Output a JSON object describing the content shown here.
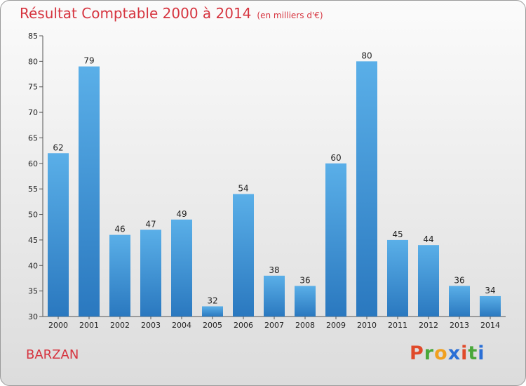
{
  "chart_data": {
    "type": "bar",
    "title": "Résultat Comptable 2000 à 2014",
    "subtitle": "(en milliers d'€)",
    "categories": [
      "2000",
      "2001",
      "2002",
      "2003",
      "2004",
      "2005",
      "2006",
      "2007",
      "2008",
      "2009",
      "2010",
      "2011",
      "2012",
      "2013",
      "2014"
    ],
    "values": [
      62,
      79,
      46,
      47,
      49,
      32,
      54,
      38,
      36,
      60,
      80,
      45,
      44,
      36,
      34
    ],
    "ylim": [
      30,
      85
    ],
    "yticks": [
      30,
      35,
      40,
      45,
      50,
      55,
      60,
      65,
      70,
      75,
      80,
      85
    ],
    "grid": false,
    "bar_color": "#3d8fd6"
  },
  "location": "BARZAN",
  "logo": {
    "letters": [
      "P",
      "r",
      "o",
      "x",
      "i",
      "t",
      "i"
    ],
    "colors": [
      "#e04a2a",
      "#4aa83a",
      "#f0a020",
      "#2a6fd6",
      "#e04a2a",
      "#4aa83a",
      "#2a6fd6"
    ]
  }
}
